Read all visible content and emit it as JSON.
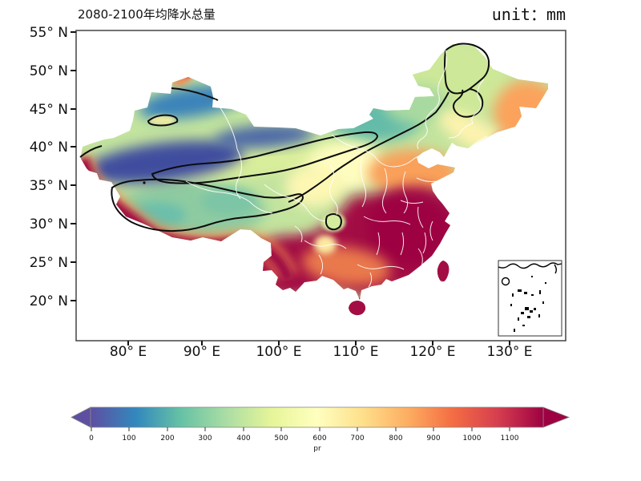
{
  "title": "2080-2100年均降水总量",
  "unit_label": "unit：mm",
  "axes": {
    "y_ticks": [
      "55° N",
      "50° N",
      "45° N",
      "40° N",
      "35° N",
      "30° N",
      "25° N",
      "20° N"
    ],
    "x_ticks": [
      "80° E",
      "90° E",
      "100° E",
      "110° E",
      "120° E",
      "130° E"
    ]
  },
  "colorbar": {
    "label": "pr",
    "ticks": [
      "0",
      "100",
      "200",
      "300",
      "400",
      "500",
      "600",
      "700",
      "800",
      "900",
      "1000",
      "1100"
    ],
    "colors": [
      "#5e4fa2",
      "#3288bd",
      "#66c2a5",
      "#abdda4",
      "#e6f598",
      "#ffffbf",
      "#fee08b",
      "#fdae61",
      "#f46d43",
      "#d53e4f",
      "#9e0142"
    ]
  },
  "inset": {
    "name": "south-china-sea-inset"
  },
  "chart_data": {
    "type": "heatmap",
    "subtype": "filled-contour-map",
    "title": "2080-2100年均降水总量",
    "unit": "mm",
    "variable": "pr",
    "xlabel_ticks_deg_east": [
      80,
      90,
      100,
      110,
      120,
      130
    ],
    "ylabel_ticks_deg_north": [
      55,
      50,
      45,
      40,
      35,
      30,
      25,
      20
    ],
    "lon_range": [
      73,
      137
    ],
    "lat_range": [
      15,
      55
    ],
    "colorbar_ticks": [
      0,
      100,
      200,
      300,
      400,
      500,
      600,
      700,
      800,
      900,
      1000,
      1100
    ],
    "colorbar_range": [
      0,
      1200
    ],
    "colormap": "Spectral reversed (blue=low, dark red=high)",
    "colormap_stops": [
      {
        "value": 0,
        "color": "#5e4fa2"
      },
      {
        "value": 120,
        "color": "#3288bd"
      },
      {
        "value": 240,
        "color": "#66c2a5"
      },
      {
        "value": 360,
        "color": "#abdda4"
      },
      {
        "value": 480,
        "color": "#e6f598"
      },
      {
        "value": 600,
        "color": "#ffffbf"
      },
      {
        "value": 720,
        "color": "#fee08b"
      },
      {
        "value": 840,
        "color": "#fdae61"
      },
      {
        "value": 960,
        "color": "#f46d43"
      },
      {
        "value": 1080,
        "color": "#d53e4f"
      },
      {
        "value": 1200,
        "color": "#9e0142"
      }
    ],
    "contour_lines": "black isolines (~400 mm) looping around NW arid region, Tibetan interior, a small loop near 85E/43N, a small loop NW of Sichuan Basin, and a long NE-SW line with loop over N Heilongjiang",
    "regions_approx_mm": [
      {
        "region": "Tarim Basin / southern Xinjiang (NW)",
        "value": 50
      },
      {
        "region": "Northern Xinjiang (Junggar)",
        "value": 150
      },
      {
        "region": "Altai north tip",
        "value": 850
      },
      {
        "region": "Tibetan Plateau interior",
        "value": 350
      },
      {
        "region": "Qaidam-Qilian yellow-green band",
        "value": 450
      },
      {
        "region": "Northeast China interior",
        "value": 450
      },
      {
        "region": "Far-east Heilongjiang border",
        "value": 850
      },
      {
        "region": "North China Plain",
        "value": 800
      },
      {
        "region": "Central loess / upper Yellow River",
        "value": 600
      },
      {
        "region": "Southeast & South China, Taiwan, Hainan",
        "value": 1150
      },
      {
        "region": "Himalayan southern rim / SE Tibet",
        "value": 1150
      },
      {
        "region": "Sichuan NW green pocket",
        "value": 450
      },
      {
        "region": "Guangxi-Guizhou orange corridor",
        "value": 850
      }
    ]
  }
}
